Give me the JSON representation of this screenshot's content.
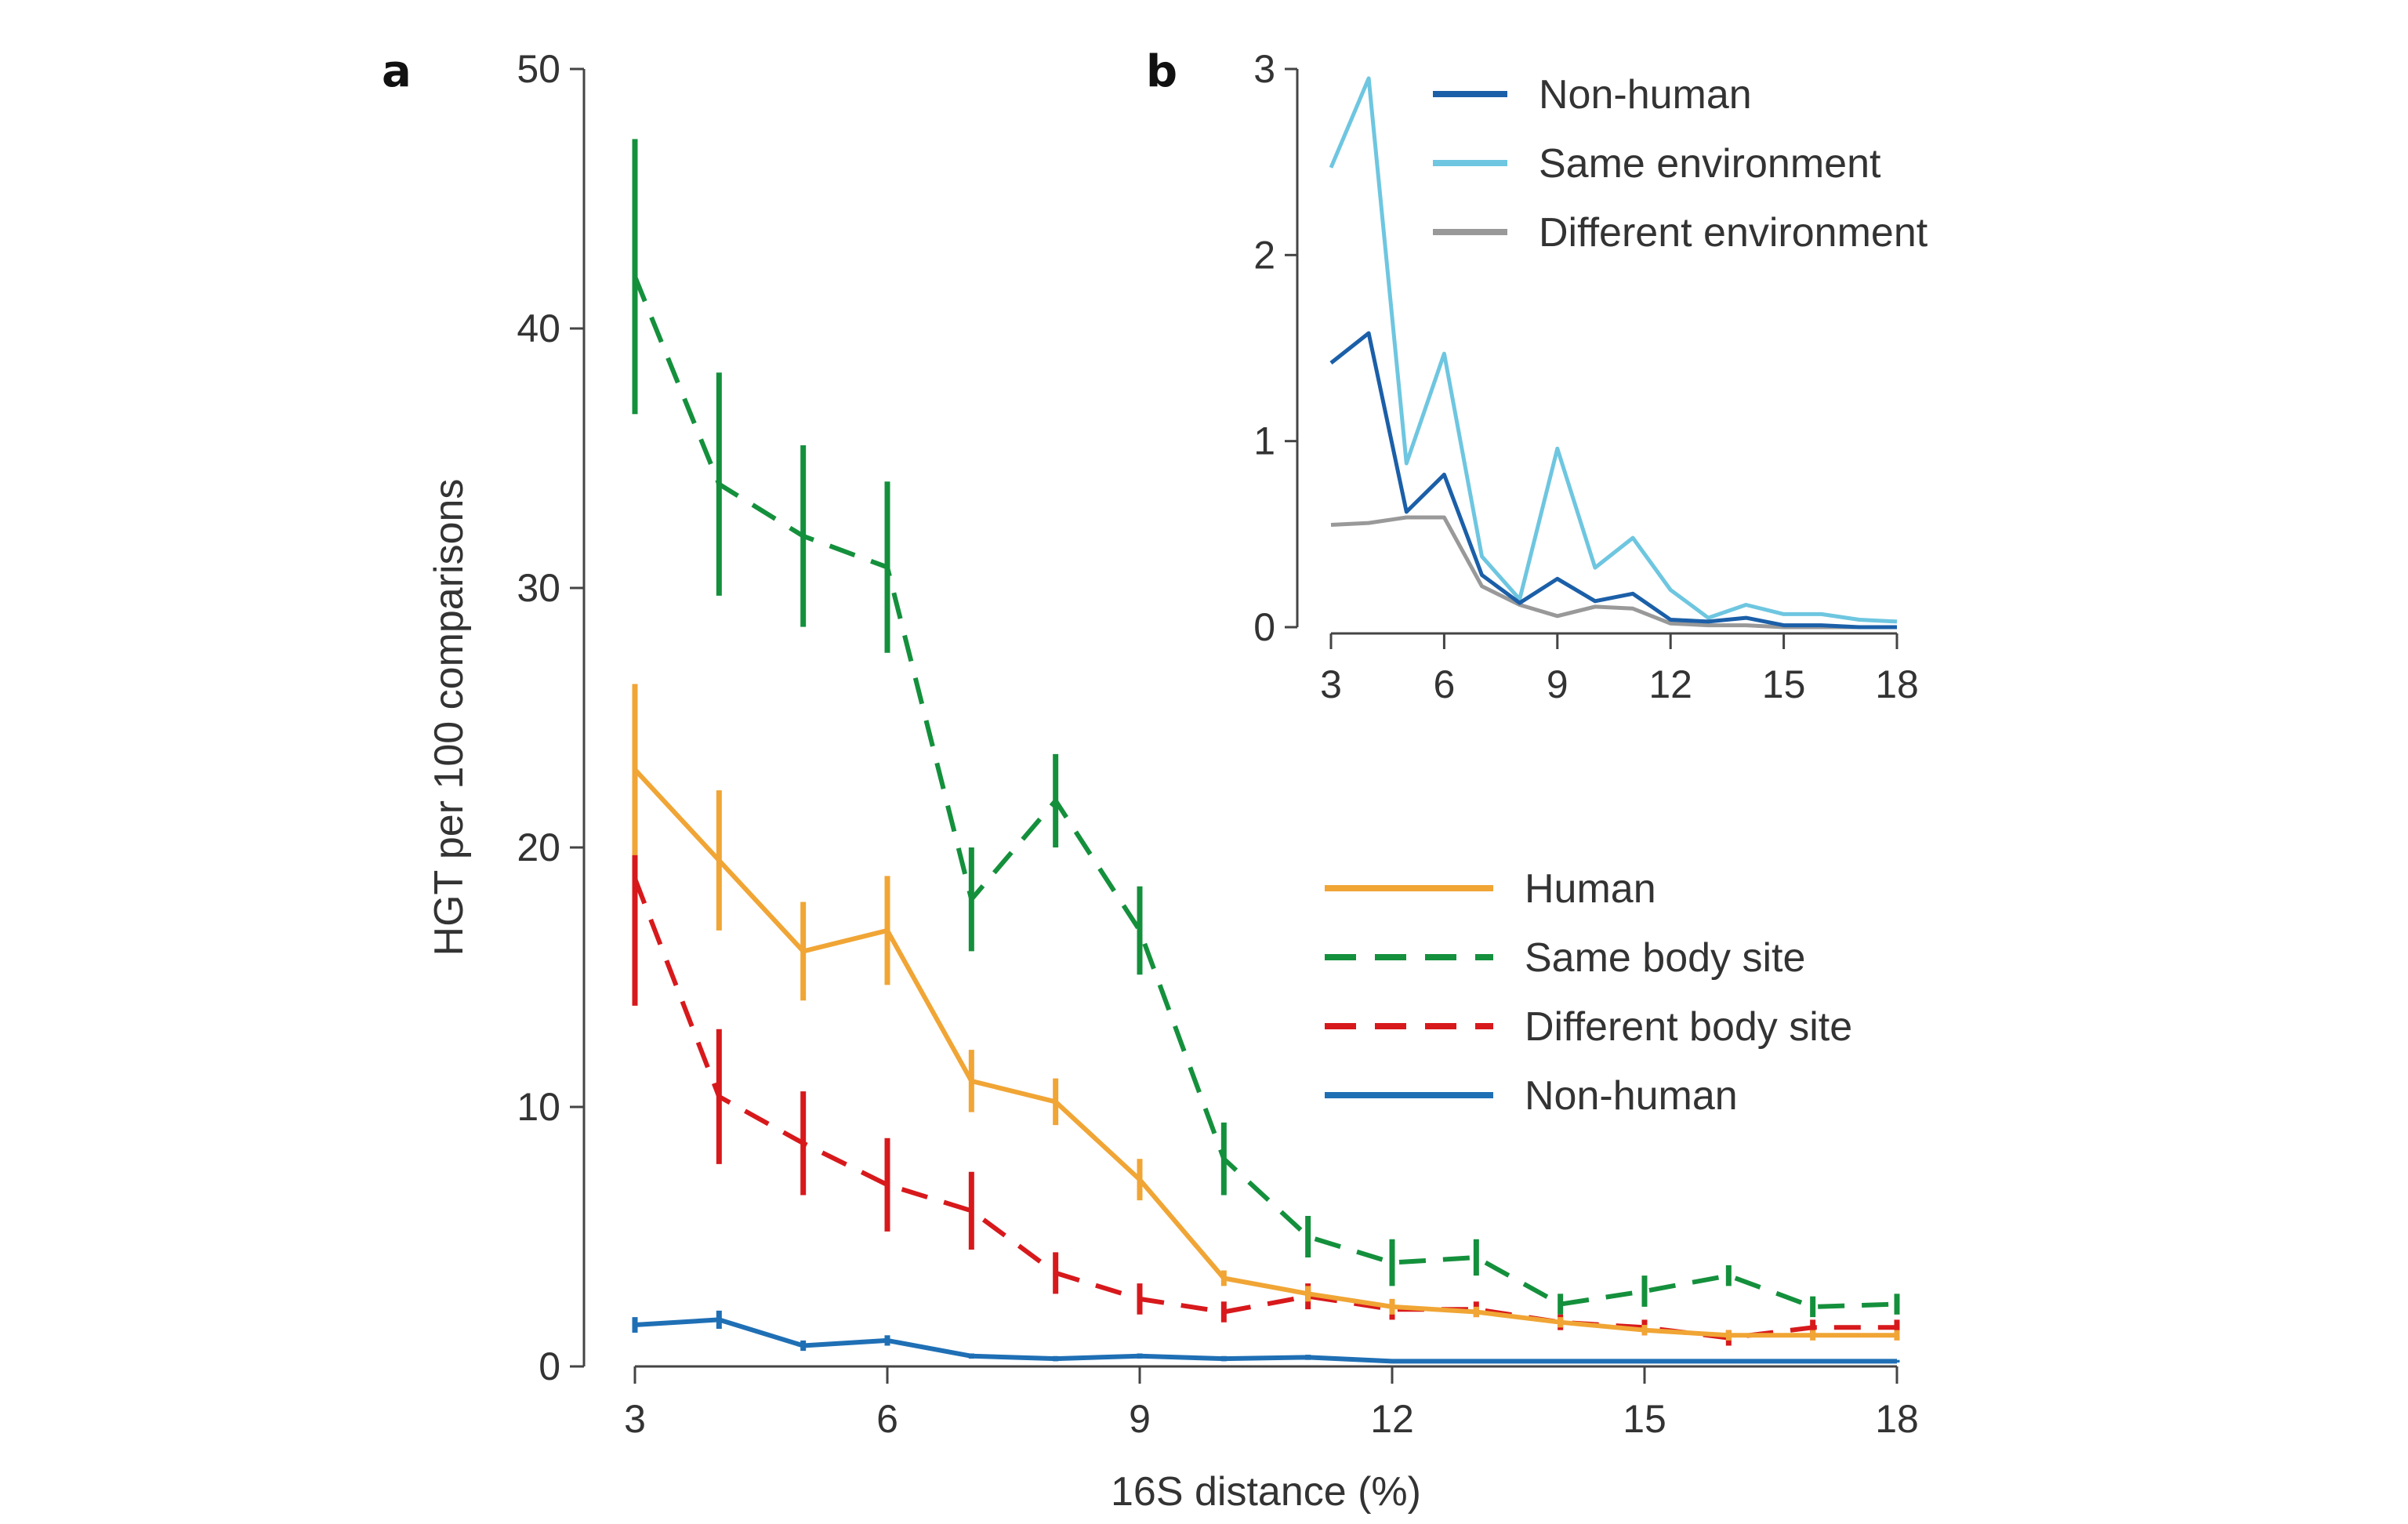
{
  "chart_data": [
    {
      "panel": "a",
      "type": "line",
      "title": "",
      "xlabel": "16S distance (%)",
      "ylabel": "HGT per 100 comparisons",
      "xlim": [
        3,
        18
      ],
      "ylim": [
        0,
        50
      ],
      "xticks": [
        3,
        6,
        9,
        12,
        15,
        18
      ],
      "yticks": [
        0,
        10,
        20,
        30,
        40,
        50
      ],
      "grid": false,
      "legend_position": "center-right",
      "x": [
        3,
        4,
        5,
        6,
        7,
        8,
        9,
        10,
        11,
        12,
        13,
        14,
        15,
        16,
        17,
        18
      ],
      "series": [
        {
          "name": "Human",
          "color": "#F0A535",
          "style": "solid",
          "values": [
            23.0,
            19.5,
            16.0,
            16.8,
            11.0,
            10.2,
            7.2,
            3.4,
            2.8,
            2.3,
            2.1,
            1.7,
            1.4,
            1.2,
            1.2,
            1.2
          ],
          "error": [
            3.3,
            2.7,
            1.9,
            2.1,
            1.2,
            0.9,
            0.8,
            0.3,
            0.3,
            0.3,
            0.2,
            0.2,
            0.2,
            0.2,
            0.2,
            0.2
          ]
        },
        {
          "name": "Same body site",
          "color": "#14903C",
          "style": "dashed",
          "values": [
            42.0,
            34.0,
            32.0,
            30.8,
            18.0,
            21.8,
            16.8,
            8.0,
            5.0,
            4.0,
            4.2,
            2.4,
            2.9,
            3.5,
            2.3,
            2.4
          ],
          "error": [
            5.3,
            4.3,
            3.5,
            3.3,
            2.0,
            1.8,
            1.7,
            1.4,
            0.8,
            0.9,
            0.7,
            0.4,
            0.6,
            0.4,
            0.4,
            0.4
          ]
        },
        {
          "name": "Different body site",
          "color": "#D7191C",
          "style": "dashed",
          "values": [
            18.8,
            10.4,
            8.6,
            7.0,
            6.0,
            3.6,
            2.6,
            2.1,
            2.7,
            2.2,
            2.2,
            1.7,
            1.5,
            1.1,
            1.5,
            1.5
          ],
          "error": [
            4.9,
            2.6,
            2.0,
            1.8,
            1.5,
            0.8,
            0.6,
            0.4,
            0.5,
            0.4,
            0.3,
            0.3,
            0.3,
            0.3,
            0.3,
            0.3
          ]
        },
        {
          "name": "Non-human",
          "color": "#1F6FB5",
          "style": "solid",
          "values": [
            1.6,
            1.8,
            0.8,
            1.0,
            0.4,
            0.3,
            0.4,
            0.3,
            0.35,
            0.2,
            0.2,
            0.2,
            0.2,
            0.2,
            0.2,
            0.2
          ],
          "error": [
            0.3,
            0.35,
            0.2,
            0.2,
            0.1,
            0.1,
            0.1,
            0.1,
            0.1,
            0.05,
            0.05,
            0.05,
            0.05,
            0.05,
            0.05,
            0.05
          ]
        }
      ]
    },
    {
      "panel": "b",
      "type": "line",
      "title": "",
      "xlabel": "",
      "ylabel": "",
      "xlim": [
        3,
        18
      ],
      "ylim": [
        0,
        3
      ],
      "xticks": [
        3,
        6,
        9,
        12,
        15,
        18
      ],
      "yticks": [
        0,
        1,
        2,
        3
      ],
      "grid": false,
      "legend_position": "top-right",
      "x": [
        3,
        4,
        5,
        6,
        7,
        8,
        9,
        10,
        11,
        12,
        13,
        14,
        15,
        16,
        17,
        18
      ],
      "series": [
        {
          "name": "Non-human",
          "color": "#1B5FA8",
          "values": [
            1.42,
            1.58,
            0.62,
            0.82,
            0.28,
            0.13,
            0.26,
            0.14,
            0.18,
            0.04,
            0.03,
            0.05,
            0.01,
            0.01,
            0.0,
            0.0
          ]
        },
        {
          "name": "Same environment",
          "color": "#6EC6E0",
          "values": [
            2.47,
            2.95,
            0.88,
            1.47,
            0.38,
            0.15,
            0.96,
            0.32,
            0.48,
            0.2,
            0.05,
            0.12,
            0.07,
            0.07,
            0.04,
            0.03
          ]
        },
        {
          "name": "Different environment",
          "color": "#999999",
          "values": [
            0.55,
            0.56,
            0.59,
            0.59,
            0.22,
            0.12,
            0.06,
            0.11,
            0.1,
            0.02,
            0.01,
            0.01,
            0.0,
            0.0,
            0.0,
            0.0
          ]
        }
      ]
    }
  ],
  "panels": {
    "a_label": "a",
    "b_label": "b"
  }
}
